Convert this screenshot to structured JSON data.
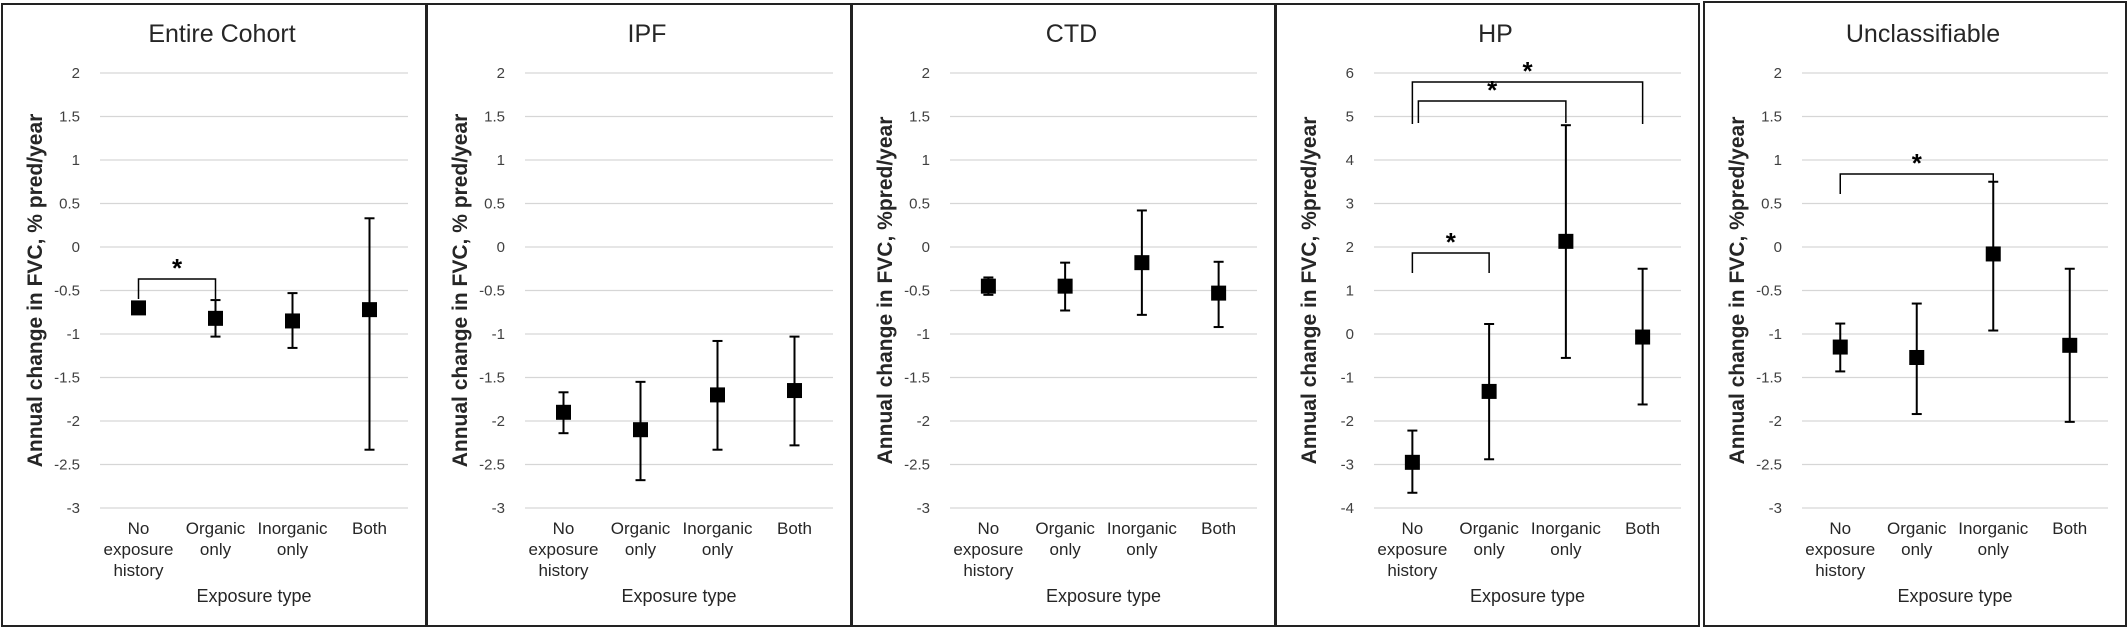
{
  "chart_data": [
    {
      "type": "scatter",
      "title": "Entire Cohort",
      "xlabel": "Exposure type",
      "ylabel": "Annual change in FVC, % pred/year",
      "categories": [
        "No exposure history",
        "Organic only",
        "Inorganic only",
        "Both"
      ],
      "ylim": [
        -3,
        2
      ],
      "yticks": [
        "2",
        "1.5",
        "1",
        "0.5",
        "0",
        "-0.5",
        "-1",
        "-1.5",
        "-2",
        "-2.5",
        "-3"
      ],
      "grid": true,
      "values": [
        -0.7,
        -0.82,
        -0.85,
        -0.72
      ],
      "lower": [
        -0.77,
        -1.03,
        -1.16,
        -2.33
      ],
      "upper": [
        -0.63,
        -0.61,
        -0.53,
        0.33
      ],
      "significance": [
        {
          "from": 0,
          "to": 1,
          "label": "*"
        }
      ]
    },
    {
      "type": "scatter",
      "title": "IPF",
      "xlabel": "Exposure type",
      "ylabel": "Annual change in FVC, % pred/year",
      "categories": [
        "No exposure history",
        "Organic only",
        "Inorganic only",
        "Both"
      ],
      "ylim": [
        -3,
        2
      ],
      "yticks": [
        "2",
        "1.5",
        "1",
        "0.5",
        "0",
        "-0.5",
        "-1",
        "-1.5",
        "-2",
        "-2.5",
        "-3"
      ],
      "grid": true,
      "values": [
        -1.9,
        -2.1,
        -1.7,
        -1.65
      ],
      "lower": [
        -2.14,
        -2.68,
        -2.33,
        -2.28
      ],
      "upper": [
        -1.67,
        -1.55,
        -1.08,
        -1.03
      ],
      "significance": []
    },
    {
      "type": "scatter",
      "title": "CTD",
      "xlabel": "Exposure type",
      "ylabel": "Annual change in FVC, %pred/year",
      "categories": [
        "No exposure history",
        "Organic only",
        "Inorganic only",
        "Both"
      ],
      "ylim": [
        -3,
        2
      ],
      "yticks": [
        "2",
        "1.5",
        "1",
        "0.5",
        "0",
        "-0.5",
        "-1",
        "-1.5",
        "-2",
        "-2.5",
        "-3"
      ],
      "grid": true,
      "values": [
        -0.45,
        -0.45,
        -0.18,
        -0.53
      ],
      "lower": [
        -0.55,
        -0.73,
        -0.78,
        -0.92
      ],
      "upper": [
        -0.35,
        -0.18,
        0.42,
        -0.17
      ],
      "significance": []
    },
    {
      "type": "scatter",
      "title": "HP",
      "xlabel": "Exposure type",
      "ylabel": "Annual change in FVC, %pred/year",
      "categories": [
        "No exposure history",
        "Organic only",
        "Inorganic only",
        "Both"
      ],
      "ylim": [
        -4,
        6
      ],
      "yticks": [
        "6",
        "5",
        "4",
        "3",
        "2",
        "1",
        "0",
        "-1",
        "-2",
        "-3",
        "-4"
      ],
      "grid": true,
      "values": [
        -2.95,
        -1.32,
        2.13,
        -0.07
      ],
      "lower": [
        -3.65,
        -2.88,
        -0.55,
        -1.62
      ],
      "upper": [
        -2.22,
        0.23,
        4.8,
        1.5
      ],
      "significance": [
        {
          "from": 0,
          "to": 1,
          "label": "*"
        },
        {
          "from": 0,
          "to": 2,
          "label": "*"
        },
        {
          "from": 0,
          "to": 3,
          "label": "*"
        }
      ]
    },
    {
      "type": "scatter",
      "title": "Unclassifiable",
      "xlabel": "Exposure type",
      "ylabel": "Annual change in FVC, %pred/year",
      "categories": [
        "No exposure history",
        "Organic only",
        "Inorganic only",
        "Both"
      ],
      "ylim": [
        -3,
        2
      ],
      "yticks": [
        "2",
        "1.5",
        "1",
        "0.5",
        "0",
        "-0.5",
        "-1",
        "-1.5",
        "-2",
        "-2.5",
        "-3"
      ],
      "grid": true,
      "values": [
        -1.15,
        -1.27,
        -0.08,
        -1.13
      ],
      "lower": [
        -1.43,
        -1.92,
        -0.96,
        -2.01
      ],
      "upper": [
        -0.88,
        -0.65,
        0.75,
        -0.25
      ],
      "significance": [
        {
          "from": 0,
          "to": 2,
          "label": "*"
        }
      ]
    }
  ]
}
